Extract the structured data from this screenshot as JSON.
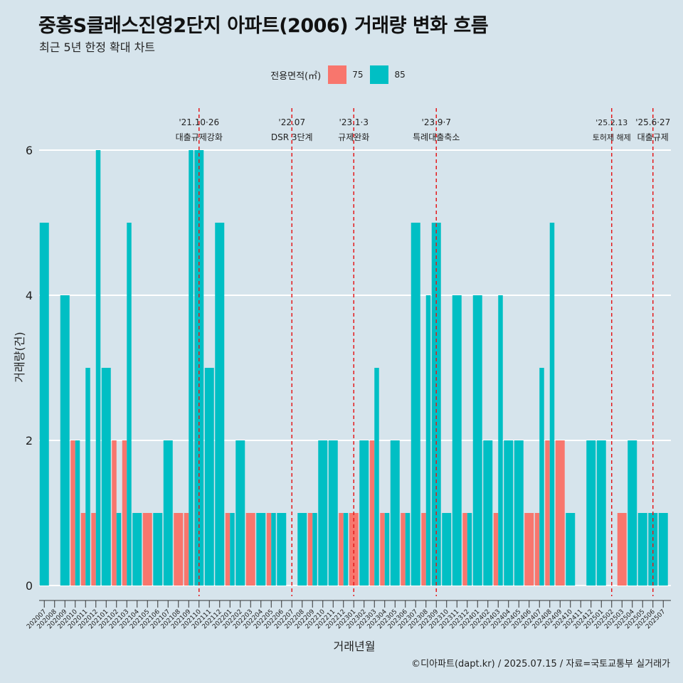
{
  "title": "중흥S클래스진영2단지 아파트(2006) 거래량 변화 흐름",
  "subtitle": "최근 5년 한정 확대 차트",
  "caption": "©디아파트(dapt.kr) / 2025.07.15 / 자료=국토교통부 실거래가",
  "legend": {
    "title": "전용면적(㎡)",
    "items": [
      {
        "label": "75",
        "color": "#f8766d"
      },
      {
        "label": "85",
        "color": "#00bfc4"
      }
    ]
  },
  "chart_data": {
    "type": "bar",
    "xlabel": "거래년월",
    "ylabel": "거래량(건)",
    "ylim": [
      0,
      6
    ],
    "yticks": [
      0,
      2,
      4,
      6
    ],
    "categories": [
      "202007",
      "202008",
      "202009",
      "202010",
      "202011",
      "202012",
      "202101",
      "202102",
      "202103",
      "202104",
      "202105",
      "202106",
      "202107",
      "202108",
      "202109",
      "202110",
      "202111",
      "202112",
      "202201",
      "202202",
      "202203",
      "202204",
      "202205",
      "202206",
      "202207",
      "202208",
      "202209",
      "202210",
      "202211",
      "202212",
      "202301",
      "202302",
      "202303",
      "202304",
      "202305",
      "202306",
      "202307",
      "202308",
      "202309",
      "202310",
      "202311",
      "202312",
      "202401",
      "202402",
      "202403",
      "202404",
      "202405",
      "202406",
      "202407",
      "202408",
      "202409",
      "202410",
      "202411",
      "202412",
      "202501",
      "202502",
      "202503",
      "202504",
      "202505",
      "202506",
      "202507"
    ],
    "series": [
      {
        "name": "75",
        "color": "#f8766d",
        "values": [
          0,
          0,
          0,
          2,
          1,
          1,
          0,
          2,
          2,
          0,
          1,
          0,
          0,
          1,
          1,
          0,
          0,
          0,
          1,
          0,
          1,
          0,
          1,
          0,
          0,
          0,
          1,
          0,
          0,
          1,
          1,
          0,
          2,
          1,
          0,
          1,
          0,
          1,
          0,
          0,
          0,
          1,
          0,
          0,
          1,
          0,
          0,
          1,
          1,
          2,
          2,
          0,
          0,
          0,
          0,
          0,
          1,
          0,
          0,
          0,
          0
        ]
      },
      {
        "name": "85",
        "color": "#00bfc4",
        "values": [
          5,
          0,
          4,
          2,
          3,
          6,
          3,
          1,
          5,
          1,
          0,
          1,
          2,
          0,
          6,
          6,
          3,
          5,
          1,
          2,
          0,
          1,
          1,
          1,
          0,
          1,
          1,
          2,
          2,
          1,
          0,
          2,
          3,
          1,
          2,
          1,
          5,
          4,
          5,
          1,
          4,
          1,
          4,
          2,
          4,
          2,
          2,
          0,
          3,
          5,
          0,
          1,
          0,
          2,
          2,
          0,
          0,
          2,
          1,
          1,
          1
        ]
      }
    ],
    "events": [
      {
        "category": "202110",
        "date": "'21.10·26",
        "label": "대출규제강화"
      },
      {
        "category": "202207",
        "date": "'22.07",
        "label": "DSR 3단계"
      },
      {
        "category": "202301",
        "date": "'23.1·3",
        "label": "규제완화"
      },
      {
        "category": "202309",
        "date": "'23.9·7",
        "label": "특례대출축소"
      },
      {
        "category": "202502",
        "date": "'25.2.13",
        "label": "토허제 해제"
      },
      {
        "category": "202506",
        "date": "'25.6·27",
        "label": "대출규제"
      }
    ]
  }
}
